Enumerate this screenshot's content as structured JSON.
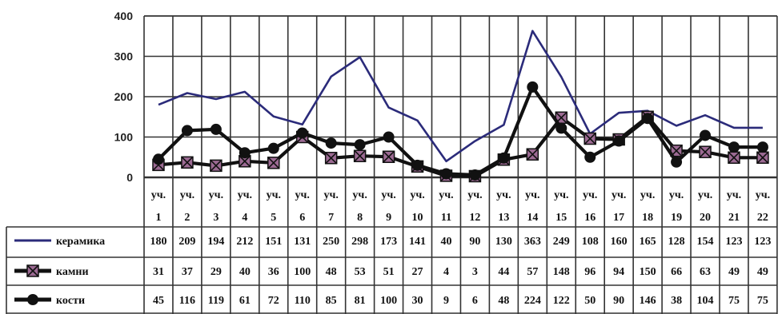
{
  "chart_data": {
    "type": "line",
    "categories_top": [
      "уч.",
      "уч.",
      "уч.",
      "уч.",
      "уч.",
      "уч.",
      "уч.",
      "уч.",
      "уч.",
      "уч.",
      "уч.",
      "уч.",
      "уч.",
      "уч.",
      "уч.",
      "уч.",
      "уч.",
      "уч.",
      "уч.",
      "уч.",
      "уч.",
      "уч."
    ],
    "categories": [
      "1",
      "2",
      "3",
      "4",
      "5",
      "6",
      "7",
      "8",
      "9",
      "10",
      "11",
      "12",
      "13",
      "14",
      "15",
      "16",
      "17",
      "18",
      "19",
      "20",
      "21",
      "22"
    ],
    "yticks": [
      "0",
      "100",
      "200",
      "300",
      "400"
    ],
    "ylim": [
      0,
      400
    ],
    "grid": true,
    "legend_placement": "table-left",
    "series": [
      {
        "name": "керамика",
        "color": "#2b2b7a",
        "marker": "none",
        "values": [
          180,
          209,
          194,
          212,
          151,
          131,
          250,
          298,
          173,
          141,
          40,
          90,
          130,
          363,
          249,
          108,
          160,
          165,
          128,
          154,
          123,
          123
        ]
      },
      {
        "name": "камни",
        "color": "#111111",
        "marker": "x-square",
        "values": [
          31,
          37,
          29,
          40,
          36,
          100,
          48,
          53,
          51,
          27,
          4,
          3,
          44,
          57,
          148,
          96,
          94,
          150,
          66,
          63,
          49,
          49
        ]
      },
      {
        "name": "кости",
        "color": "#111111",
        "marker": "circle",
        "values": [
          45,
          116,
          119,
          61,
          72,
          110,
          85,
          81,
          100,
          30,
          9,
          6,
          48,
          224,
          122,
          50,
          90,
          146,
          38,
          104,
          75,
          75
        ]
      }
    ]
  }
}
